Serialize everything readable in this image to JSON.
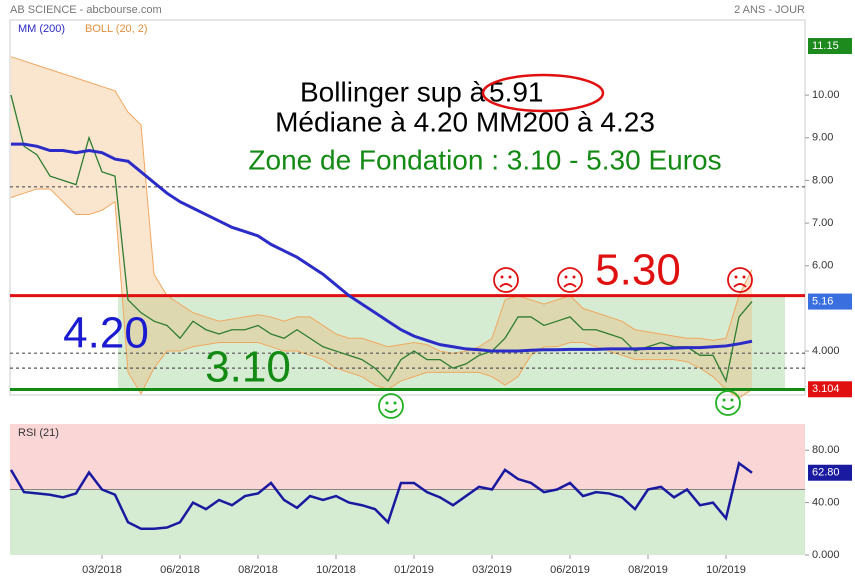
{
  "chart_data": [
    {
      "type": "line",
      "title": "AB SCIENCE - abcbourse.com",
      "subtitle": "2 ANS - JOUR",
      "categories": [
        null,
        null,
        null,
        null,
        null,
        null,
        null,
        "03/2018",
        null,
        null,
        null,
        null,
        null,
        "06/2018",
        null,
        null,
        null,
        null,
        null,
        "08/2018",
        null,
        null,
        null,
        null,
        null,
        "10/2018",
        null,
        null,
        null,
        null,
        null,
        "01/2019",
        null,
        null,
        null,
        null,
        null,
        "03/2019",
        null,
        null,
        null,
        null,
        null,
        "06/2019",
        null,
        null,
        null,
        null,
        null,
        "08/2019",
        null,
        null,
        null,
        null,
        null,
        "10/2019",
        null,
        null
      ],
      "values": [
        10.0,
        8.8,
        8.6,
        8.1,
        8.0,
        7.9,
        9.0,
        8.2,
        8.1,
        5.2,
        4.9,
        4.7,
        4.6,
        4.3,
        4.7,
        4.5,
        4.4,
        4.5,
        4.5,
        4.6,
        4.4,
        4.3,
        4.5,
        4.3,
        4.1,
        4.0,
        3.9,
        3.8,
        3.6,
        3.3,
        3.8,
        4.0,
        3.8,
        3.8,
        3.6,
        3.7,
        3.9,
        4.0,
        4.3,
        4.8,
        4.8,
        4.6,
        4.7,
        4.8,
        4.5,
        4.5,
        4.4,
        4.3,
        4.0,
        4.1,
        4.2,
        4.1,
        4.1,
        3.9,
        3.9,
        3.3,
        4.8,
        5.16
      ],
      "color": "#2e7d32",
      "series": [
        {
          "name": "MM (200)",
          "color": "#2b2bc8",
          "values": [
            8.85,
            8.85,
            8.8,
            8.7,
            8.7,
            8.65,
            8.7,
            8.65,
            8.5,
            8.45,
            8.2,
            7.95,
            7.7,
            7.5,
            7.35,
            7.2,
            7.05,
            6.9,
            6.8,
            6.7,
            6.5,
            6.35,
            6.2,
            6.0,
            5.8,
            5.55,
            5.3,
            5.1,
            4.9,
            4.7,
            4.5,
            4.35,
            4.25,
            4.15,
            4.1,
            4.05,
            4.03,
            4.0,
            4.0,
            4.0,
            4.02,
            4.03,
            4.03,
            4.04,
            4.04,
            4.04,
            4.05,
            4.05,
            4.05,
            4.06,
            4.06,
            4.07,
            4.08,
            4.08,
            4.1,
            4.12,
            4.17,
            4.23
          ]
        }
      ],
      "bands": {
        "name": "BOLL (20, 2)",
        "color": "#f0a860",
        "upper": [
          10.9,
          10.8,
          10.7,
          10.6,
          10.5,
          10.4,
          10.3,
          10.2,
          10.1,
          9.6,
          9.3,
          5.8,
          5.3,
          5.1,
          4.9,
          4.8,
          4.7,
          4.75,
          4.8,
          4.85,
          4.8,
          4.7,
          4.8,
          4.8,
          4.6,
          4.4,
          4.3,
          4.3,
          4.2,
          4.1,
          4.15,
          4.2,
          4.15,
          4.0,
          3.95,
          4.0,
          4.1,
          4.3,
          5.2,
          5.3,
          5.2,
          5.1,
          5.2,
          5.3,
          5.0,
          4.9,
          4.8,
          4.7,
          4.5,
          4.45,
          4.4,
          4.35,
          4.3,
          4.3,
          4.25,
          4.3,
          5.3,
          5.91
        ],
        "lower": [
          7.6,
          7.7,
          7.8,
          7.8,
          7.5,
          7.2,
          7.2,
          7.3,
          7.5,
          3.5,
          3.0,
          3.6,
          4.0,
          4.0,
          4.1,
          4.15,
          4.2,
          4.2,
          4.2,
          4.2,
          4.1,
          4.0,
          4.0,
          3.9,
          3.8,
          3.6,
          3.5,
          3.4,
          3.2,
          3.1,
          3.3,
          3.4,
          3.5,
          3.5,
          3.5,
          3.5,
          3.5,
          3.4,
          3.2,
          3.4,
          3.9,
          4.1,
          4.1,
          4.2,
          4.2,
          4.1,
          4.0,
          3.9,
          3.8,
          3.8,
          3.8,
          3.8,
          3.75,
          3.6,
          3.4,
          3.1,
          2.9,
          3.1
        ]
      },
      "ylim": [
        2.97,
        11.76
      ],
      "yticks": [
        {
          "value": 10,
          "label": "10.00"
        },
        {
          "value": 9,
          "label": "9.00"
        },
        {
          "value": 8,
          "label": "8.00"
        },
        {
          "value": 7,
          "label": "7.00"
        },
        {
          "value": 6,
          "label": "6.00"
        },
        {
          "value": 4,
          "label": "4.000"
        }
      ],
      "zone": {
        "low": 3.1,
        "high": 5.3,
        "color": "#d6ecd2"
      },
      "levels": [
        {
          "value": 5.3,
          "color": "#e01010",
          "style": "solid"
        },
        {
          "value": 3.1,
          "color": "#138a13",
          "style": "solid"
        },
        {
          "value": 7.85,
          "color": "#555",
          "style": "dashed"
        },
        {
          "value": 3.95,
          "color": "#555",
          "style": "dashed"
        },
        {
          "value": 3.6,
          "color": "#555",
          "style": "dashed"
        }
      ],
      "price_labels": [
        {
          "value": 11.15,
          "color": "#1d8a1d"
        },
        {
          "value": 5.16,
          "color": "#3a6fe0"
        },
        {
          "value": 3.104,
          "color": "#e01010"
        }
      ],
      "annotations": [
        {
          "text": "Bollinger sup à",
          "color": "#000"
        },
        {
          "text": "5.91",
          "color": "#000"
        },
        {
          "text": "Médiane à 4.20   MM200 à 4.23",
          "color": "#000"
        },
        {
          "text": "Zone de Fondation : 3.10 - 5.30 Euros",
          "color": "#138a13"
        },
        {
          "text": "5.30",
          "color": "#e01010"
        },
        {
          "text": "4.20",
          "color": "#1a1ad0"
        },
        {
          "text": "3.10",
          "color": "#138a13"
        }
      ]
    },
    {
      "type": "line",
      "title": "RSI (21)",
      "values": [
        65,
        48,
        47,
        46,
        44,
        47,
        63,
        50,
        46,
        25,
        20,
        20,
        21,
        25,
        40,
        35,
        42,
        38,
        45,
        47,
        55,
        42,
        36,
        45,
        42,
        45,
        40,
        38,
        35,
        25,
        55,
        55,
        48,
        44,
        38,
        45,
        52,
        50,
        65,
        58,
        55,
        48,
        50,
        55,
        45,
        48,
        47,
        44,
        35,
        50,
        52,
        44,
        50,
        38,
        40,
        28,
        70,
        62.8
      ],
      "color": "#1a1aa0",
      "ylim": [
        0,
        100
      ],
      "yticks": [
        {
          "value": 80,
          "label": "80.00"
        },
        {
          "value": 40,
          "label": "40.00"
        },
        {
          "value": 0,
          "label": "0.000"
        }
      ],
      "threshold": 50,
      "above_color": "#fbd6d6",
      "below_color": "#d6ecd2",
      "last_label": {
        "value": 62.8,
        "label": "62.80",
        "color": "#1a1aa0"
      }
    }
  ]
}
